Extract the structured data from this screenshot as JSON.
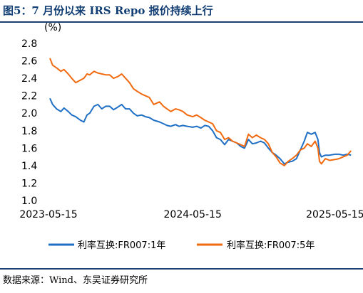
{
  "header": {
    "title": "图5：7 月份以来 IRS Repo 报价持续上行"
  },
  "footer": {
    "source": "数据来源：Wind、东吴证券研究所"
  },
  "chart_data": {
    "type": "line",
    "title": "图5：7 月份以来 IRS Repo 报价持续上行",
    "xlabel": "",
    "ylabel": "(%)",
    "ylim": [
      1.0,
      2.8
    ],
    "yticks": [
      "2.8",
      "2.6",
      "2.4",
      "2.2",
      "2.0",
      "1.8",
      "1.6",
      "1.4",
      "1.2",
      "1.0"
    ],
    "xticks": [
      "2023-05-15",
      "2024-05-15",
      "2025-05-15"
    ],
    "xrange": [
      "2023-05-15",
      "2025-06-30"
    ],
    "grid": false,
    "legend_position": "bottom",
    "colors": {
      "series_1y": "#1f6fc5",
      "series_5y": "#f26a0f",
      "title": "#123e73"
    },
    "series": [
      {
        "name": "利率互换:FR007:1年",
        "color": "#1f6fc5",
        "x": [
          "2023-05-15",
          "2023-05-22",
          "2023-06-01",
          "2023-06-12",
          "2023-06-20",
          "2023-07-01",
          "2023-07-10",
          "2023-07-20",
          "2023-08-01",
          "2023-08-10",
          "2023-08-18",
          "2023-08-25",
          "2023-09-05",
          "2023-09-15",
          "2023-09-25",
          "2023-10-05",
          "2023-10-15",
          "2023-10-25",
          "2023-11-05",
          "2023-11-15",
          "2023-11-25",
          "2023-12-05",
          "2023-12-15",
          "2023-12-25",
          "2024-01-05",
          "2024-01-15",
          "2024-01-25",
          "2024-02-05",
          "2024-02-20",
          "2024-03-01",
          "2024-03-10",
          "2024-03-20",
          "2024-04-01",
          "2024-04-10",
          "2024-04-20",
          "2024-05-01",
          "2024-05-15",
          "2024-05-25",
          "2024-06-05",
          "2024-06-15",
          "2024-06-25",
          "2024-07-05",
          "2024-07-15",
          "2024-07-25",
          "2024-08-05",
          "2024-08-15",
          "2024-08-25",
          "2024-09-05",
          "2024-09-15",
          "2024-09-25",
          "2024-10-05",
          "2024-10-15",
          "2024-10-25",
          "2024-11-05",
          "2024-11-15",
          "2024-11-25",
          "2024-12-05",
          "2024-12-15",
          "2024-12-25",
          "2025-01-05",
          "2025-01-15",
          "2025-01-25",
          "2025-02-05",
          "2025-02-15",
          "2025-02-25",
          "2025-03-05",
          "2025-03-15",
          "2025-03-25",
          "2025-04-01",
          "2025-04-05",
          "2025-04-10",
          "2025-04-20",
          "2025-05-01",
          "2025-05-15",
          "2025-05-25",
          "2025-06-05",
          "2025-06-15",
          "2025-06-25"
        ],
        "values": [
          2.17,
          2.1,
          2.05,
          2.02,
          2.06,
          2.02,
          1.98,
          1.96,
          1.92,
          1.9,
          1.98,
          2.0,
          2.08,
          2.1,
          2.05,
          2.08,
          2.08,
          2.04,
          2.07,
          2.1,
          2.05,
          2.05,
          2.0,
          1.97,
          1.98,
          1.96,
          1.95,
          1.92,
          1.9,
          1.88,
          1.86,
          1.85,
          1.87,
          1.85,
          1.86,
          1.85,
          1.84,
          1.85,
          1.83,
          1.86,
          1.85,
          1.8,
          1.72,
          1.7,
          1.64,
          1.7,
          1.68,
          1.66,
          1.62,
          1.6,
          1.7,
          1.65,
          1.66,
          1.68,
          1.66,
          1.6,
          1.55,
          1.52,
          1.48,
          1.42,
          1.44,
          1.45,
          1.48,
          1.58,
          1.68,
          1.78,
          1.76,
          1.78,
          1.7,
          1.55,
          1.5,
          1.52,
          1.52,
          1.53,
          1.53,
          1.52,
          1.53,
          1.52
        ]
      },
      {
        "name": "利率互换:FR007:5年",
        "color": "#f26a0f",
        "x": [
          "2023-05-15",
          "2023-05-22",
          "2023-06-01",
          "2023-06-12",
          "2023-06-20",
          "2023-07-01",
          "2023-07-10",
          "2023-07-20",
          "2023-08-01",
          "2023-08-10",
          "2023-08-18",
          "2023-08-25",
          "2023-09-05",
          "2023-09-15",
          "2023-09-25",
          "2023-10-05",
          "2023-10-15",
          "2023-10-25",
          "2023-11-05",
          "2023-11-15",
          "2023-11-25",
          "2023-12-05",
          "2023-12-15",
          "2023-12-25",
          "2024-01-05",
          "2024-01-15",
          "2024-01-25",
          "2024-02-05",
          "2024-02-20",
          "2024-03-01",
          "2024-03-10",
          "2024-03-20",
          "2024-04-01",
          "2024-04-10",
          "2024-04-20",
          "2024-05-01",
          "2024-05-15",
          "2024-05-25",
          "2024-06-05",
          "2024-06-15",
          "2024-06-25",
          "2024-07-05",
          "2024-07-15",
          "2024-07-25",
          "2024-08-05",
          "2024-08-15",
          "2024-08-25",
          "2024-09-05",
          "2024-09-15",
          "2024-09-25",
          "2024-10-05",
          "2024-10-15",
          "2024-10-25",
          "2024-11-05",
          "2024-11-15",
          "2024-11-25",
          "2024-12-05",
          "2024-12-15",
          "2024-12-25",
          "2025-01-05",
          "2025-01-15",
          "2025-01-25",
          "2025-02-05",
          "2025-02-15",
          "2025-02-25",
          "2025-03-05",
          "2025-03-15",
          "2025-03-25",
          "2025-04-01",
          "2025-04-05",
          "2025-04-10",
          "2025-04-20",
          "2025-05-01",
          "2025-05-15",
          "2025-05-25",
          "2025-06-05",
          "2025-06-15",
          "2025-06-25"
        ],
        "values": [
          2.63,
          2.55,
          2.52,
          2.48,
          2.5,
          2.45,
          2.4,
          2.35,
          2.38,
          2.4,
          2.45,
          2.44,
          2.48,
          2.46,
          2.45,
          2.44,
          2.44,
          2.4,
          2.42,
          2.45,
          2.4,
          2.35,
          2.28,
          2.25,
          2.22,
          2.2,
          2.18,
          2.1,
          2.13,
          2.08,
          2.05,
          2.02,
          2.05,
          2.04,
          2.02,
          1.98,
          1.96,
          1.98,
          1.95,
          1.92,
          1.9,
          1.88,
          1.8,
          1.78,
          1.7,
          1.72,
          1.68,
          1.66,
          1.64,
          1.62,
          1.76,
          1.72,
          1.75,
          1.72,
          1.7,
          1.65,
          1.55,
          1.5,
          1.43,
          1.4,
          1.45,
          1.48,
          1.52,
          1.58,
          1.6,
          1.65,
          1.62,
          1.68,
          1.6,
          1.45,
          1.42,
          1.48,
          1.46,
          1.47,
          1.48,
          1.5,
          1.52,
          1.57
        ]
      }
    ]
  }
}
